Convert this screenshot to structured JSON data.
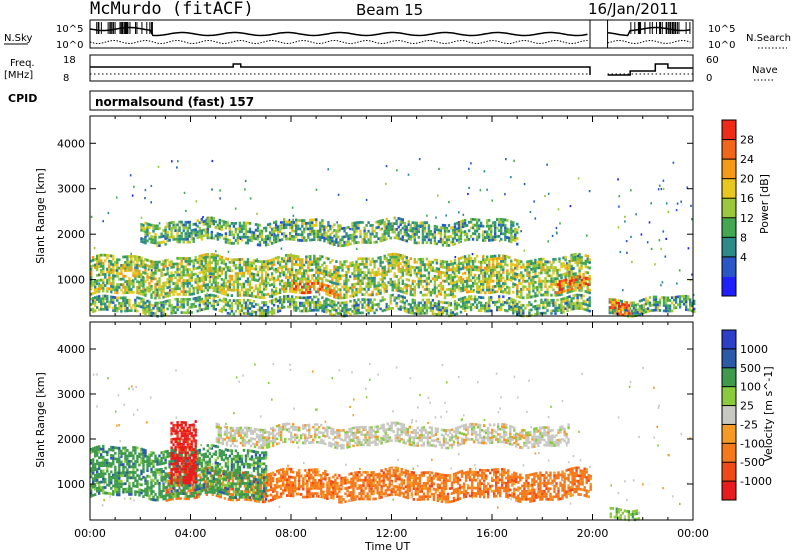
{
  "header": {
    "station": "McMurdo (fitACF)",
    "beam": "Beam 15",
    "date": "16/Jan/2011"
  },
  "noise_panel": {
    "left_label": "N.Sky",
    "right_label": "N.Search",
    "left_ticks": [
      "10^5",
      "10^0"
    ],
    "right_ticks": [
      "10^5",
      "10^0"
    ]
  },
  "freq_panel": {
    "left_label_1": "Freq.",
    "left_label_2": "[MHz]",
    "left_ticks": [
      "18",
      "8"
    ],
    "right_label": "Nave",
    "right_ticks": [
      "60",
      "0"
    ]
  },
  "cpid": {
    "label": "CPID",
    "value": "normalsound (fast) 157"
  },
  "colors": {
    "power": [
      "#1f1fff",
      "#2a56c8",
      "#2e8a8a",
      "#44a853",
      "#9ac83a",
      "#e8c81f",
      "#f59a17",
      "#f2661a",
      "#ef2a17"
    ],
    "velocity": [
      "#e81c1c",
      "#f04a18",
      "#f5781a",
      "#f59a25",
      "#c8c8c2",
      "#8acb3e",
      "#3f9a4e",
      "#2c5aa8",
      "#2b3fc8"
    ]
  },
  "chart_data": [
    {
      "type": "heatmap",
      "name": "power",
      "xlabel": "",
      "ylabel": "Slant Range [km]",
      "ylim": [
        200,
        4600
      ],
      "xlim": [
        0,
        24
      ],
      "yticks": [
        1000,
        2000,
        3000,
        4000
      ],
      "colorbar": {
        "label": "Power [dB]",
        "range": [
          0,
          32
        ],
        "ticks": [
          "28",
          "24",
          "20",
          "16",
          "12",
          "8",
          "4"
        ]
      },
      "data_gap_hours": [
        19.9,
        20.6
      ],
      "bands": [
        {
          "feature": "near-range clutter",
          "t_start": 0.0,
          "t_end": 24.0,
          "range_lo": 250,
          "range_hi": 600,
          "power_db": 10
        },
        {
          "feature": "lower scatter band",
          "t_start": 0.0,
          "t_end": 19.9,
          "range_lo": 650,
          "range_hi": 1500,
          "power_db": 14
        },
        {
          "feature": "upper scatter band",
          "t_start": 2.0,
          "t_end": 17.0,
          "range_lo": 1800,
          "range_hi": 2300,
          "power_db": 10
        },
        {
          "feature": "strong echo",
          "t_start": 8.0,
          "t_end": 10.0,
          "range_lo": 650,
          "range_hi": 900,
          "power_db": 28
        },
        {
          "feature": "strong echo",
          "t_start": 18.5,
          "t_end": 19.8,
          "range_lo": 700,
          "range_hi": 1000,
          "power_db": 26
        },
        {
          "feature": "strong echo",
          "t_start": 20.6,
          "t_end": 21.5,
          "range_lo": 250,
          "range_hi": 600,
          "power_db": 26
        }
      ]
    },
    {
      "type": "heatmap",
      "name": "velocity",
      "xlabel": "Time UT",
      "ylabel": "Slant Range [km]",
      "ylim": [
        200,
        4600
      ],
      "xlim": [
        0,
        24
      ],
      "xticks": [
        "00:00",
        "04:00",
        "08:00",
        "12:00",
        "16:00",
        "20:00",
        "00:00"
      ],
      "yticks": [
        1000,
        2000,
        3000,
        4000
      ],
      "colorbar": {
        "label": "Velocity [m s^-1]",
        "ticks": [
          "1000",
          "500",
          "100",
          "25",
          "-25",
          "-100",
          "-500",
          "-1000"
        ]
      },
      "data_gap_hours": [
        19.9,
        20.6
      ],
      "bands": [
        {
          "feature": "lower band",
          "t_start": 3.0,
          "t_end": 19.9,
          "range_lo": 650,
          "range_hi": 1300,
          "velocity": -150
        },
        {
          "feature": "ground scatter",
          "t_start": 5.0,
          "t_end": 19.0,
          "range_lo": 1850,
          "range_hi": 2300,
          "velocity": 0
        },
        {
          "feature": "early echoes",
          "t_start": 0.0,
          "t_end": 7.0,
          "range_lo": 700,
          "range_hi": 1800,
          "velocity": 120
        },
        {
          "feature": "streak",
          "t_start": 3.2,
          "t_end": 4.2,
          "range_lo": 1000,
          "range_hi": 2400,
          "velocity": -700
        },
        {
          "feature": "near-range clutter",
          "t_start": 20.6,
          "t_end": 21.8,
          "range_lo": 250,
          "range_hi": 500,
          "velocity": 80
        }
      ]
    }
  ]
}
